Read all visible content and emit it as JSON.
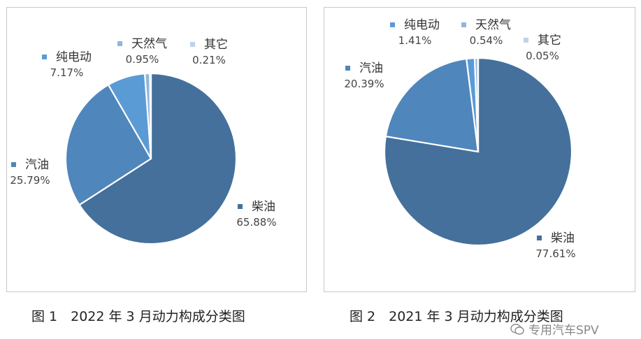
{
  "chart_data": [
    {
      "type": "pie",
      "caption": "图 1　2022 年 3 月动力构成分类图",
      "slices": [
        {
          "name": "柴油",
          "value": 65.88,
          "label": "65.88%",
          "color": "#44709b"
        },
        {
          "name": "汽油",
          "value": 25.79,
          "label": "25.79%",
          "color": "#4f86bc"
        },
        {
          "name": "纯电动",
          "value": 7.17,
          "label": "7.17%",
          "color": "#5b9bd5"
        },
        {
          "name": "天然气",
          "value": 0.95,
          "label": "0.95%",
          "color": "#8fb6de"
        },
        {
          "name": "其它",
          "value": 0.21,
          "label": "0.21%",
          "color": "#bcd3ea"
        }
      ]
    },
    {
      "type": "pie",
      "caption": "图 2　2021 年 3 月动力构成分类图",
      "slices": [
        {
          "name": "柴油",
          "value": 77.61,
          "label": "77.61%",
          "color": "#44709b"
        },
        {
          "name": "汽油",
          "value": 20.39,
          "label": "20.39%",
          "color": "#4f86bc"
        },
        {
          "name": "纯电动",
          "value": 1.41,
          "label": "1.41%",
          "color": "#5b9bd5"
        },
        {
          "name": "天然气",
          "value": 0.54,
          "label": "0.54%",
          "color": "#8fb6de"
        },
        {
          "name": "其它",
          "value": 0.05,
          "label": "0.05%",
          "color": "#bcd3ea"
        }
      ]
    }
  ],
  "watermark": {
    "text": "专用汽车SPV",
    "icon": "wechat-icon"
  }
}
